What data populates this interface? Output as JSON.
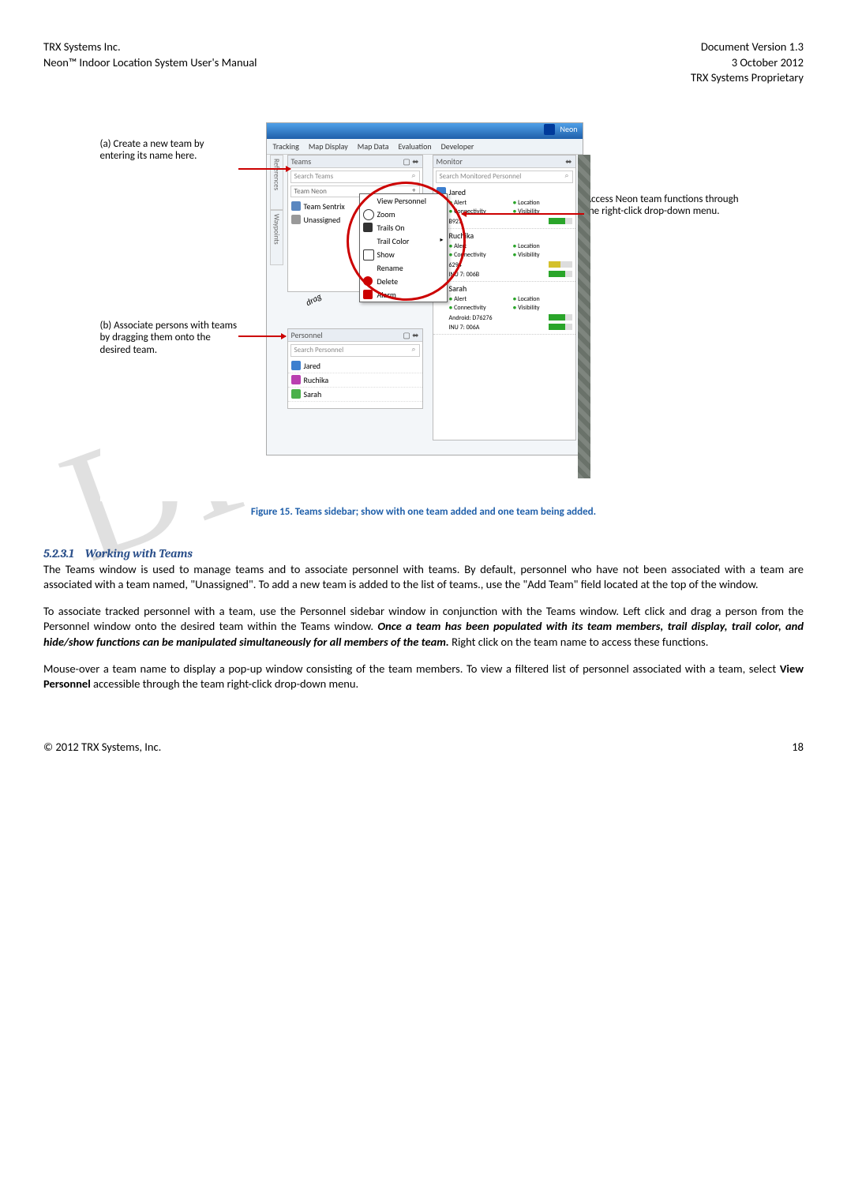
{
  "header": {
    "company": "TRX Systems Inc.",
    "product": "Neon™ Indoor Location System User's Manual",
    "docversion": "Document Version 1.3",
    "date": "3 October 2012",
    "proprietary": "TRX Systems Proprietary"
  },
  "watermark": "DRAFT",
  "screenshot": {
    "app_title": "Neon",
    "ribbon": [
      "Tracking",
      "Map Display",
      "Map Data",
      "Evaluation",
      "Developer"
    ],
    "sidetab1": "References",
    "sidetab2": "Waypoints",
    "teams_panel": {
      "title": "Teams",
      "search_placeholder": "Search Teams",
      "add_placeholder": "Team Neon",
      "rows": [
        {
          "label": "Team Sentrix",
          "cls": "team-icon"
        },
        {
          "label": "Unassigned",
          "cls": "team-icon gray"
        }
      ]
    },
    "personnel_panel": {
      "title": "Personnel",
      "search_placeholder": "Search Personnel",
      "rows": [
        {
          "label": "Jared",
          "cls": "p-blue"
        },
        {
          "label": "Ruchika",
          "cls": "p-mag"
        },
        {
          "label": "Sarah",
          "cls": "p-grn"
        }
      ]
    },
    "monitor_panel": {
      "title": "Monitor",
      "search_placeholder": "Search Monitored Personnel",
      "persons": [
        {
          "name": "Jared",
          "cls": "p-blue",
          "status": [
            "Alert",
            "Location",
            "Connectivity",
            "Visibility"
          ],
          "devices": [
            {
              "id": "B927",
              "sig": ""
            }
          ]
        },
        {
          "name": "Ruchika",
          "cls": "p-mag",
          "status": [
            "Alert",
            "Location",
            "Connectivity",
            "Visibility"
          ],
          "devices": [
            {
              "id": "6294",
              "sig": "y"
            },
            {
              "id": "INU 7: 006B",
              "sig": ""
            }
          ]
        },
        {
          "name": "Sarah",
          "cls": "p-grn",
          "status": [
            "Alert",
            "Location",
            "Connectivity",
            "Visibility"
          ],
          "devices": [
            {
              "id": "Android: D76276",
              "sig": ""
            },
            {
              "id": "INU 7: 006A",
              "sig": ""
            }
          ]
        }
      ]
    },
    "context_menu": [
      "View Personnel",
      "Zoom",
      "Trails On",
      "Trail Color",
      "Show",
      "Rename",
      "Delete",
      "Alarm"
    ],
    "drag_label": "drag",
    "callout_a": "(a) Create a new team by entering its name here.",
    "callout_b": "(b) Associate persons with teams by dragging them onto the desired team.",
    "callout_c": "Access Neon team functions through the right-click drop-down menu."
  },
  "figure_caption": "Figure 15.  Teams sidebar; show with one team added and one team being added.",
  "section": {
    "number": "5.2.3.1",
    "title": "Working with Teams"
  },
  "paragraphs": {
    "p1": "The Teams window is used to manage teams and to associate personnel with teams.  By default, personnel who have not been associated with a team are associated with a team named, \"Unassigned\".  To add a new team is added to the list of teams., use the \"Add Team\" field located at the top of the window.",
    "p2_a": "To associate tracked personnel with a team, use the Personnel sidebar window in conjunction with the Teams window.  Left click and drag a person from the Personnel window onto the desired team within the Teams window.  ",
    "p2_bold": "Once a team has been populated with its team members, trail display, trail color, and hide/show functions can be manipulated simultaneously for all members of the team.",
    "p2_b": "  Right click on the team name to access these functions.",
    "p3_a": "Mouse-over a team name to display a pop-up window consisting of the team members.  To view a filtered list of personnel associated with a team, select ",
    "p3_bold": "View Personnel",
    "p3_b": " accessible through the team right-click drop-down menu."
  },
  "footer": {
    "copyright": "© 2012 TRX Systems, Inc.",
    "page": "18"
  }
}
